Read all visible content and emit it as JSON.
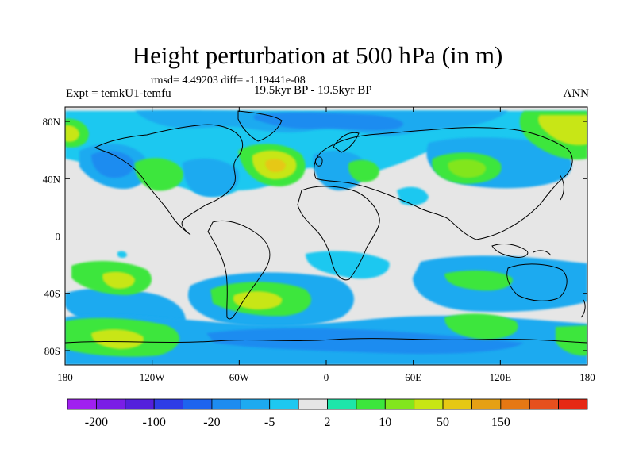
{
  "title": "Height perturbation at 500 hPa (in m)",
  "stats_line": "rmsd= 4.49203 diff= -1.19441e-08",
  "experiment_label": "Expt = temkU1-temfu",
  "subtitle": "19.5kyr BP - 19.5kyr BP",
  "season_label": "ANN",
  "map": {
    "projection": "cylindrical-equidistant",
    "lon_range": [
      -180,
      180
    ],
    "lat_range": [
      -90,
      90
    ],
    "y_ticks": [
      "80N",
      "40N",
      "0",
      "40S",
      "80S"
    ],
    "x_ticks": [
      "180",
      "120W",
      "60W",
      "0",
      "60E",
      "120E",
      "180"
    ],
    "land_outline_color": "#000000",
    "neutral_color": "#e6e6e6"
  },
  "colorbar": {
    "colors": [
      "#a020f0",
      "#7a1ee6",
      "#5420dc",
      "#2e3ce6",
      "#1e64ee",
      "#1e8cf0",
      "#1eaaf0",
      "#1ec8f0",
      "#e6e6e6",
      "#1ee6aa",
      "#3ce63c",
      "#82e61e",
      "#c8e614",
      "#e6c814",
      "#e6a014",
      "#e67814",
      "#e6501e",
      "#e62814"
    ],
    "visible_labels": [
      "-200",
      "-100",
      "-20",
      "-5",
      "2",
      "10",
      "50",
      "150"
    ]
  }
}
